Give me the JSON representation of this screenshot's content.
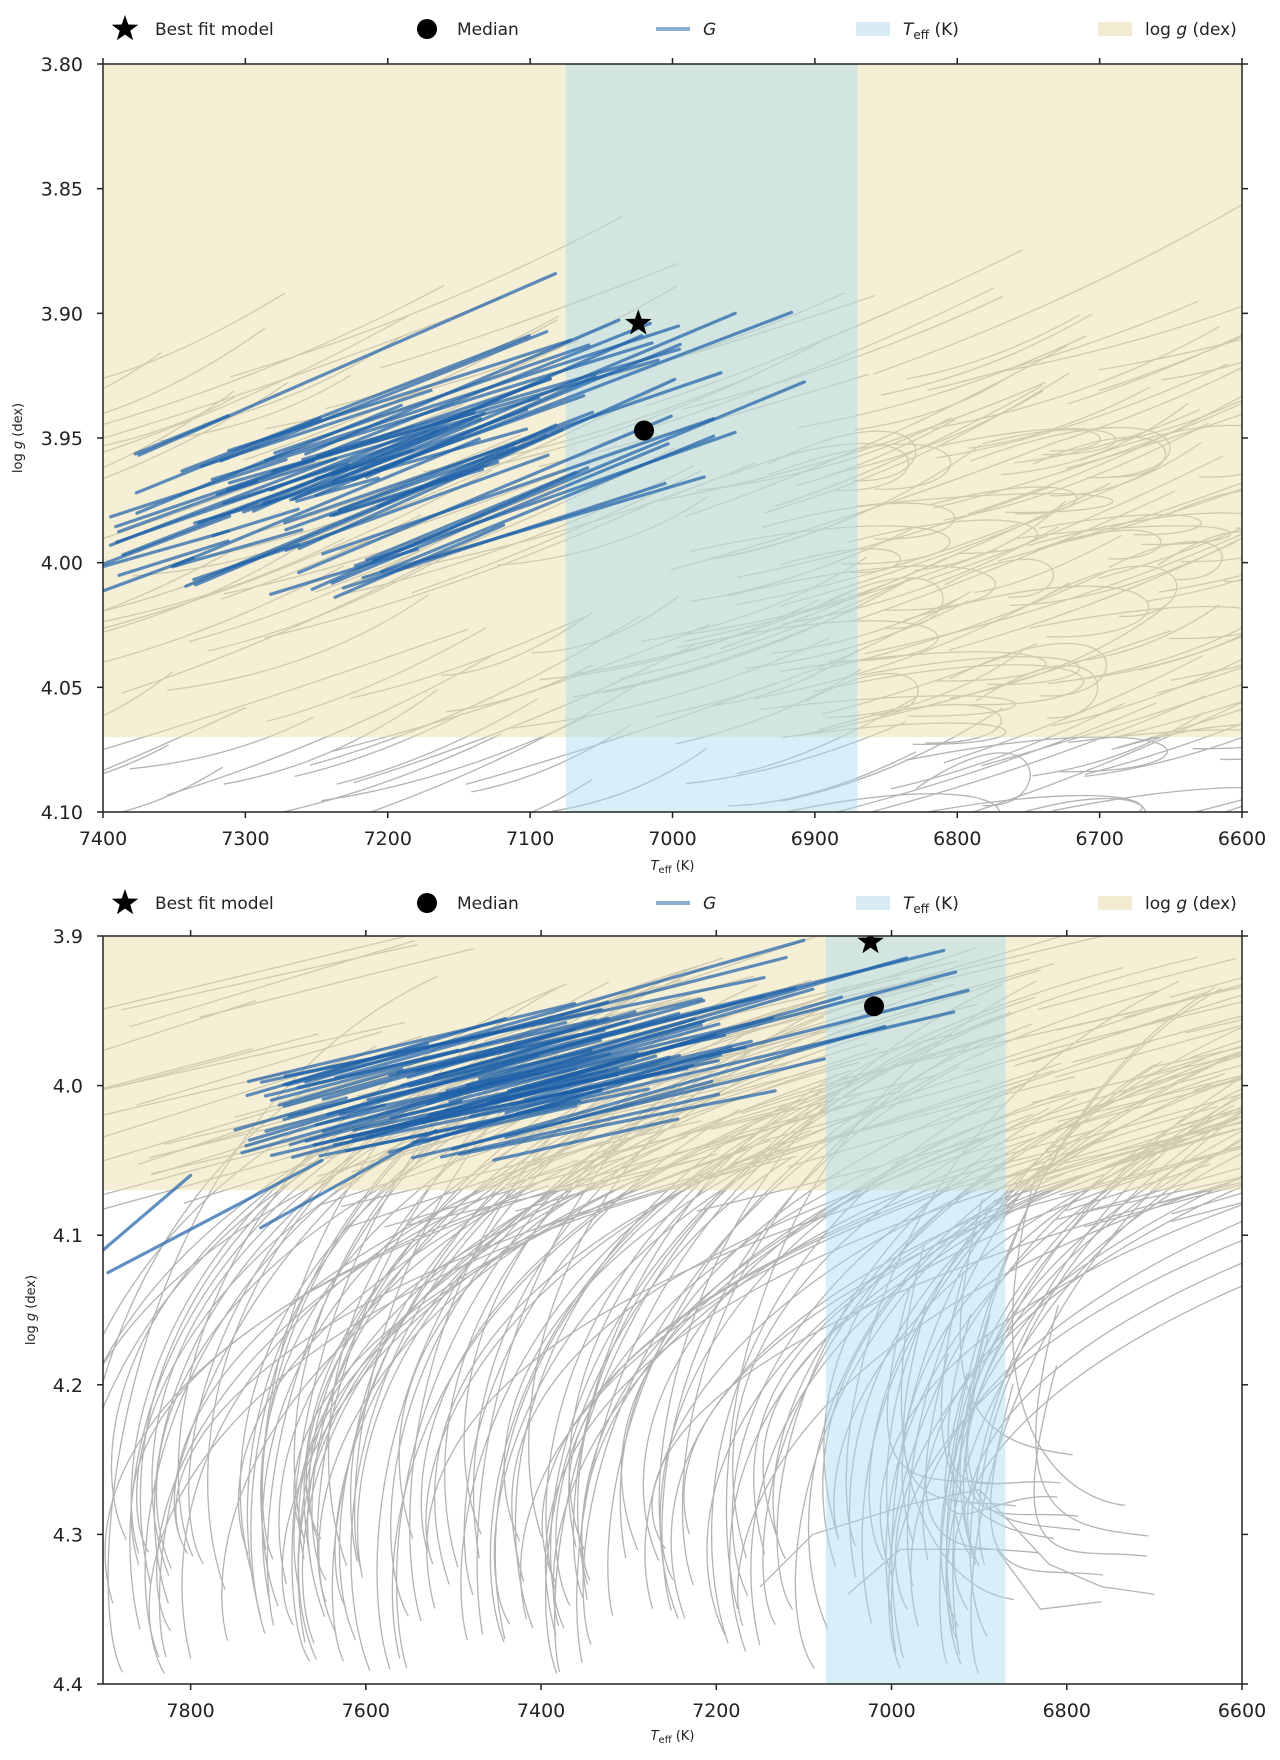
{
  "colors": {
    "teff_band": "#a9d9f0",
    "logg_band": "#ecdfae",
    "track_gray": "#a6a6a6",
    "track_blue": "#1c5fa8",
    "marker": "#000000"
  },
  "legend": {
    "best_fit": "Best fit model",
    "median": "Median",
    "g_label": "G",
    "teff_pre": "T",
    "teff_sub": "eff",
    "teff_post": " (K)",
    "logg_pre": "log ",
    "logg_g": "g",
    "logg_post": " (dex)"
  },
  "chart_data": [
    {
      "type": "line",
      "xlabel": "T_eff (K)",
      "ylabel": "log g (dex)",
      "xlim": [
        7400,
        6600
      ],
      "ylim": [
        4.1,
        3.8
      ],
      "x_ticks": [
        "7400",
        "7300",
        "7200",
        "7100",
        "7000",
        "6900",
        "6800",
        "6700",
        "6600"
      ],
      "y_ticks": [
        "3.80",
        "3.85",
        "3.90",
        "3.95",
        "4.00",
        "4.05",
        "4.10"
      ],
      "teff_band": [
        7075,
        6870
      ],
      "logg_band": [
        3.8,
        4.07
      ],
      "best_fit": {
        "teff": 7024,
        "logg": 3.904
      },
      "median": {
        "teff": 7020,
        "logg": 3.947
      },
      "legend_entries": [
        "Best fit model",
        "Median",
        "G",
        "T_eff (K)",
        "log g (dex)"
      ]
    },
    {
      "type": "line",
      "xlabel": "T_eff (K)",
      "ylabel": "log g (dex)",
      "xlim": [
        7900,
        6600
      ],
      "ylim": [
        4.4,
        3.9
      ],
      "x_ticks": [
        "7800",
        "7600",
        "7400",
        "7200",
        "7000",
        "6800",
        "6600"
      ],
      "y_ticks": [
        "3.9",
        "4.0",
        "4.1",
        "4.2",
        "4.3",
        "4.4"
      ],
      "teff_band": [
        7075,
        6870
      ],
      "logg_band": [
        3.9,
        4.07
      ],
      "best_fit": {
        "teff": 7024,
        "logg": 3.904
      },
      "median": {
        "teff": 7020,
        "logg": 3.947
      },
      "legend_entries": [
        "Best fit model",
        "Median",
        "G",
        "T_eff (K)",
        "log g (dex)"
      ]
    }
  ]
}
